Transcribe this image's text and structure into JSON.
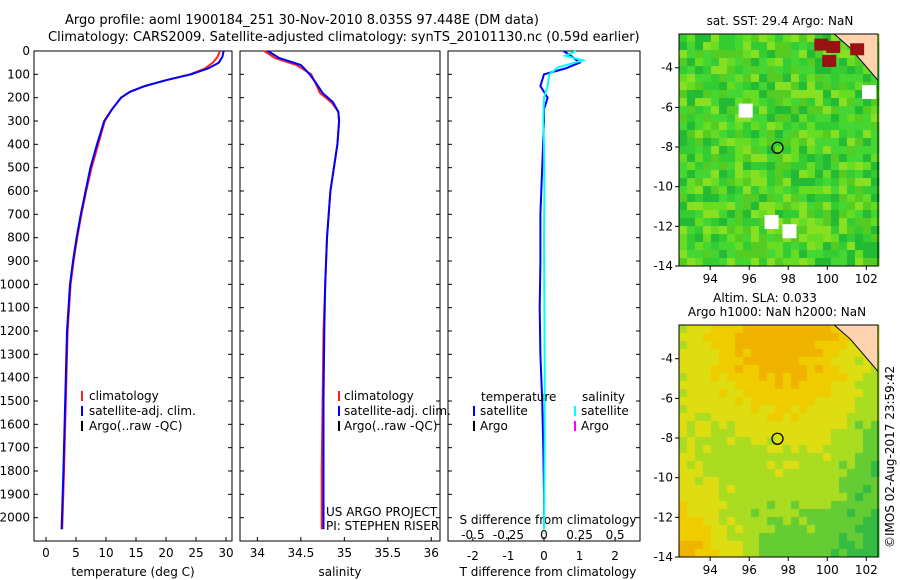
{
  "header": {
    "line1": "Argo profile: aoml 1900184_251 30-Nov-2010 8.035S 97.448E (DM data)",
    "line2": "Climatology: CARS2009. Satellite-adjusted climatology: synTS_20101130.nc (0.59d earlier)"
  },
  "colors": {
    "climatology": "#ff2020",
    "satellite": "#0000ff",
    "argo": "#000000",
    "salinity_satellite": "#00ffff",
    "salinity_argo": "#ff00ff",
    "land": "#ffd3b0"
  },
  "chart_data": [
    {
      "type": "line",
      "name": "temperature",
      "xlabel": "temperature (deg C)",
      "ylabel": "",
      "xlim": [
        -2,
        31
      ],
      "ylim": [
        2100,
        0
      ],
      "xticks": [
        0,
        5,
        10,
        15,
        20,
        25,
        30
      ],
      "yticks": [
        0,
        100,
        200,
        300,
        400,
        500,
        600,
        700,
        800,
        900,
        1000,
        1100,
        1200,
        1300,
        1400,
        1500,
        1600,
        1700,
        1800,
        1900,
        2000
      ],
      "legend": [
        "climatology",
        "satellite-adj. clim.",
        "Argo(..raw -QC)"
      ],
      "series": [
        {
          "name": "climatology",
          "x": [
            29.0,
            28.6,
            27.8,
            26.5,
            24.0,
            20.0,
            16.5,
            14.0,
            12.5,
            11.0,
            9.8,
            8.7,
            7.6,
            6.7,
            5.9,
            5.2,
            4.6,
            4.1,
            3.6,
            3.3,
            3.0,
            2.7
          ],
          "y": [
            0,
            25,
            50,
            75,
            100,
            125,
            150,
            175,
            200,
            250,
            300,
            400,
            500,
            600,
            700,
            800,
            900,
            1000,
            1200,
            1500,
            1800,
            2050
          ]
        },
        {
          "name": "satellite-adj. clim.",
          "x": [
            29.6,
            29.4,
            28.8,
            27.0,
            24.2,
            20.0,
            16.5,
            14.0,
            12.5,
            11.0,
            9.7,
            8.5,
            7.4,
            6.6,
            5.8,
            5.1,
            4.5,
            4.0,
            3.5,
            3.2,
            2.9,
            2.6
          ],
          "y": [
            0,
            25,
            50,
            75,
            100,
            125,
            150,
            175,
            200,
            250,
            300,
            400,
            500,
            600,
            700,
            800,
            900,
            1000,
            1200,
            1500,
            1800,
            2050
          ]
        }
      ]
    },
    {
      "type": "line",
      "name": "salinity",
      "xlabel": "salinity",
      "ylabel": "",
      "xlim": [
        33.8,
        36.1
      ],
      "ylim": [
        2100,
        0
      ],
      "xticks": [
        34,
        34.5,
        35,
        35.5,
        36
      ],
      "legend": [
        "climatology",
        "satellite-adj. clim.",
        "Argo(..raw -QC)"
      ],
      "annotation": [
        "US ARGO PROJECT",
        "PI: STEPHEN RISER"
      ],
      "series": [
        {
          "name": "climatology",
          "x": [
            34.08,
            34.2,
            34.45,
            34.62,
            34.67,
            34.72,
            34.85,
            34.93,
            34.94,
            34.92,
            34.88,
            34.84,
            34.8,
            34.78,
            34.76,
            34.75,
            34.74,
            34.74
          ],
          "y": [
            0,
            30,
            60,
            100,
            140,
            180,
            220,
            260,
            300,
            400,
            500,
            600,
            800,
            1000,
            1200,
            1500,
            1800,
            2050
          ]
        },
        {
          "name": "satellite-adj. clim.",
          "x": [
            34.12,
            34.25,
            34.5,
            34.6,
            34.68,
            34.75,
            34.87,
            34.93,
            34.94,
            34.92,
            34.88,
            34.84,
            34.8,
            34.78,
            34.77,
            34.76,
            34.76,
            34.76
          ],
          "y": [
            0,
            30,
            60,
            100,
            140,
            180,
            220,
            260,
            300,
            400,
            500,
            600,
            800,
            1000,
            1200,
            1500,
            1800,
            2050
          ]
        }
      ]
    },
    {
      "type": "line",
      "name": "difference",
      "xlabel": "T difference from climatology",
      "top_label": "S difference from climatology",
      "xlim": [
        -2.7,
        2.7
      ],
      "ylim": [
        2100,
        0
      ],
      "xticks_bottom": [
        "-2",
        "-1",
        "0",
        "1",
        "2"
      ],
      "xticks_bottom_values": [
        -2,
        -1,
        0,
        1,
        2
      ],
      "xticks_top": [
        "-0.5",
        "-0.25",
        "0",
        "0.25",
        "0.5"
      ],
      "xticks_top_values": [
        -2,
        -1,
        0,
        1,
        2
      ],
      "legend_temperature": {
        "title": "temperature",
        "items": [
          "satellite",
          "Argo"
        ]
      },
      "legend_salinity": {
        "title": "salinity",
        "items": [
          "satellite",
          "Argo"
        ]
      },
      "series": [
        {
          "name": "temperature satellite",
          "x": [
            0.55,
            0.8,
            1.0,
            0.6,
            0.0,
            -0.1,
            0.1,
            0.0,
            0.0,
            -0.05,
            -0.1,
            -0.1,
            -0.12,
            -0.1,
            -0.05,
            -0.02,
            0.0,
            0.0
          ],
          "y": [
            0,
            25,
            50,
            75,
            100,
            150,
            200,
            250,
            300,
            500,
            700,
            900,
            1100,
            1300,
            1500,
            1700,
            1900,
            2050
          ]
        },
        {
          "name": "salinity satellite",
          "x": [
            0.9,
            0.6,
            1.1,
            0.4,
            0.15,
            0.1,
            0.0,
            -0.02,
            0.0,
            0.01,
            0.0,
            0.01,
            0.02,
            0.02,
            0.0
          ],
          "y": [
            0,
            20,
            40,
            70,
            100,
            150,
            200,
            300,
            400,
            600,
            800,
            1100,
            1400,
            1700,
            2050
          ]
        }
      ]
    },
    {
      "type": "heatmap",
      "name": "sst-map",
      "title": "sat. SST: 29.4 Argo: NaN",
      "xlim": [
        92.4,
        102.6
      ],
      "ylim": [
        -14,
        -2.3
      ],
      "xticks": [
        94,
        96,
        98,
        100,
        102
      ],
      "yticks": [
        -4,
        -6,
        -8,
        -10,
        -12,
        -14
      ],
      "marker": {
        "lon": 97.448,
        "lat": -8.035
      }
    },
    {
      "type": "heatmap",
      "name": "sla-map",
      "title_line1": "Altim. SLA: 0.033",
      "title_line2": "Argo h1000: NaN h2000: NaN",
      "xlim": [
        92.4,
        102.6
      ],
      "ylim": [
        -14,
        -2.3
      ],
      "xticks": [
        94,
        96,
        98,
        100,
        102
      ],
      "yticks": [
        -4,
        -6,
        -8,
        -10,
        -12,
        -14
      ],
      "marker": {
        "lon": 97.448,
        "lat": -8.035
      }
    }
  ],
  "side_stamp": "©IMOS 02-Aug-2017 23:59:42"
}
